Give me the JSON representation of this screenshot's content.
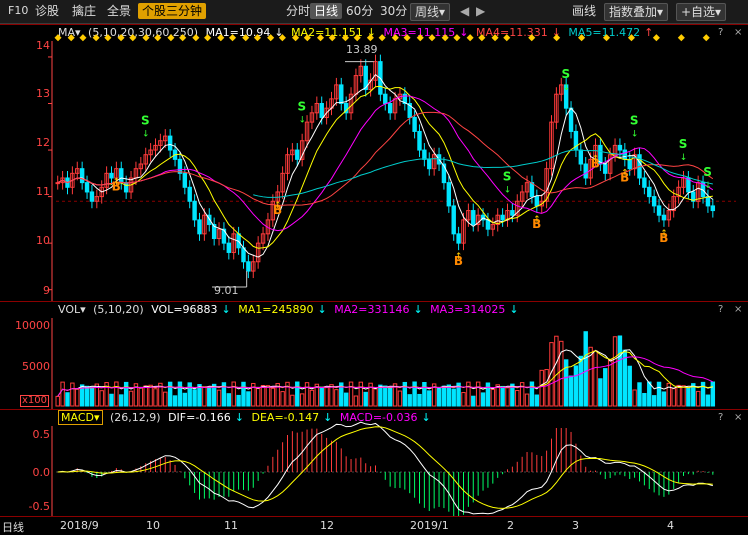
{
  "toolbar": {
    "f10": "F10",
    "zhengu": "诊股",
    "bangbang": "擒庄",
    "quanjing": "全景",
    "tab_active": "个股三分钟",
    "periods": [
      "分时",
      "日线",
      "60分",
      "30分",
      "周线▾"
    ],
    "draw": "画线",
    "index_overlay": "指数叠加▾",
    "add_fav": "+自选▾",
    "nav_left": "◀",
    "nav_right": "▶"
  },
  "main": {
    "ma_label": "MA▾",
    "ma_params": "(5,10,20,30,60,250)",
    "ma1": "MA1=10.94",
    "ma2": "MA2=11.151",
    "ma3": "MA3=11.115",
    "ma4": "MA4=11.331",
    "ma5": "MA5=11.472",
    "price_ticks": [
      "14",
      "13",
      "12",
      "11",
      "10",
      "9"
    ],
    "high_label": "13.89",
    "low_label": "9.01",
    "signals": [
      {
        "type": "S",
        "d": "up"
      },
      {
        "type": "B",
        "d": "dn"
      },
      {
        "type": "B",
        "d": "dn"
      },
      {
        "type": "S",
        "d": "up"
      },
      {
        "type": "B",
        "d": "dn"
      },
      {
        "type": "S",
        "d": "up"
      },
      {
        "type": "B",
        "d": "dn"
      },
      {
        "type": "S",
        "d": "up"
      },
      {
        "type": "B",
        "d": "dn"
      },
      {
        "type": "S",
        "d": "up"
      },
      {
        "type": "B",
        "d": "dn"
      },
      {
        "type": "S",
        "d": "up"
      },
      {
        "type": "B",
        "d": "dn"
      },
      {
        "type": "S",
        "d": "up"
      }
    ]
  },
  "vol": {
    "label": "VOL▾",
    "params": "(5,10,20)",
    "vol": "VOL=96883",
    "ma1": "MA1=245890",
    "ma2": "MA2=331146",
    "ma3": "MA3=314025",
    "ticks": [
      "10000",
      "5000"
    ],
    "unit": "x100"
  },
  "macd": {
    "label": "MACD▾",
    "params": "(26,12,9)",
    "dif": "DIF=-0.166",
    "dea": "DEA=-0.147",
    "macd": "MACD=-0.036",
    "ticks": [
      "0.5",
      "0.0",
      "-0.5"
    ]
  },
  "xaxis": {
    "corner": "日线",
    "labels": [
      "2018/9",
      "10",
      "11",
      "12",
      "2019/1",
      "2",
      "3",
      "4"
    ]
  },
  "pane_buttons": [
    "?",
    "×"
  ],
  "colors": {
    "up": "#ff3b3b",
    "down": "#00e5ff",
    "ma1": "#ffffff",
    "ma2": "#ffff00",
    "ma3": "#ff00ff",
    "ma4": "#ff4444",
    "ma5": "#00cccc",
    "axis": "#ff4444",
    "macd_up": "#ff3b3b",
    "macd_dn": "#00ff66"
  },
  "chart_data": {
    "type": "candlestick",
    "title": "",
    "price_range": [
      8.8,
      14.3
    ],
    "ohlc_close": [
      11.3,
      11.4,
      11.2,
      11.5,
      11.6,
      11.3,
      11.1,
      10.9,
      11.0,
      11.2,
      11.5,
      11.4,
      11.6,
      11.3,
      11.1,
      11.4,
      11.6,
      11.7,
      11.9,
      12.0,
      12.1,
      12.2,
      12.3,
      12.0,
      11.8,
      11.5,
      11.2,
      10.9,
      10.5,
      10.2,
      10.6,
      10.4,
      10.1,
      10.3,
      10.0,
      9.8,
      10.2,
      9.9,
      9.6,
      9.4,
      9.6,
      10.0,
      10.2,
      10.5,
      10.9,
      11.1,
      11.5,
      11.9,
      12.0,
      11.8,
      12.2,
      12.6,
      12.8,
      13.0,
      12.7,
      12.9,
      13.1,
      13.4,
      13.0,
      12.8,
      13.2,
      13.6,
      13.8,
      13.3,
      13.5,
      13.9,
      13.2,
      13.0,
      12.8,
      13.1,
      13.2,
      13.0,
      12.7,
      12.4,
      12.0,
      11.8,
      11.6,
      11.9,
      11.7,
      11.3,
      10.8,
      10.2,
      10.0,
      10.5,
      10.7,
      10.4,
      10.6,
      10.5,
      10.3,
      10.4,
      10.6,
      10.5,
      10.7,
      10.6,
      10.9,
      11.1,
      11.3,
      11.0,
      10.8,
      10.9,
      11.6,
      12.6,
      13.2,
      13.4,
      12.9,
      12.4,
      12.0,
      11.7,
      11.4,
      11.8,
      12.1,
      11.7,
      11.5,
      11.9,
      12.1,
      12.0,
      11.8,
      11.6,
      11.9,
      11.4,
      11.2,
      11.0,
      10.8,
      10.6,
      10.5,
      10.7,
      11.0,
      11.2,
      11.4,
      11.1,
      10.9,
      11.3,
      11.0,
      10.8,
      10.7
    ],
    "ma_series_names": [
      "MA1",
      "MA2",
      "MA3",
      "MA4",
      "MA5"
    ],
    "volume_ticks": [
      10000,
      5000
    ],
    "macd_range": [
      -0.6,
      0.6
    ]
  }
}
